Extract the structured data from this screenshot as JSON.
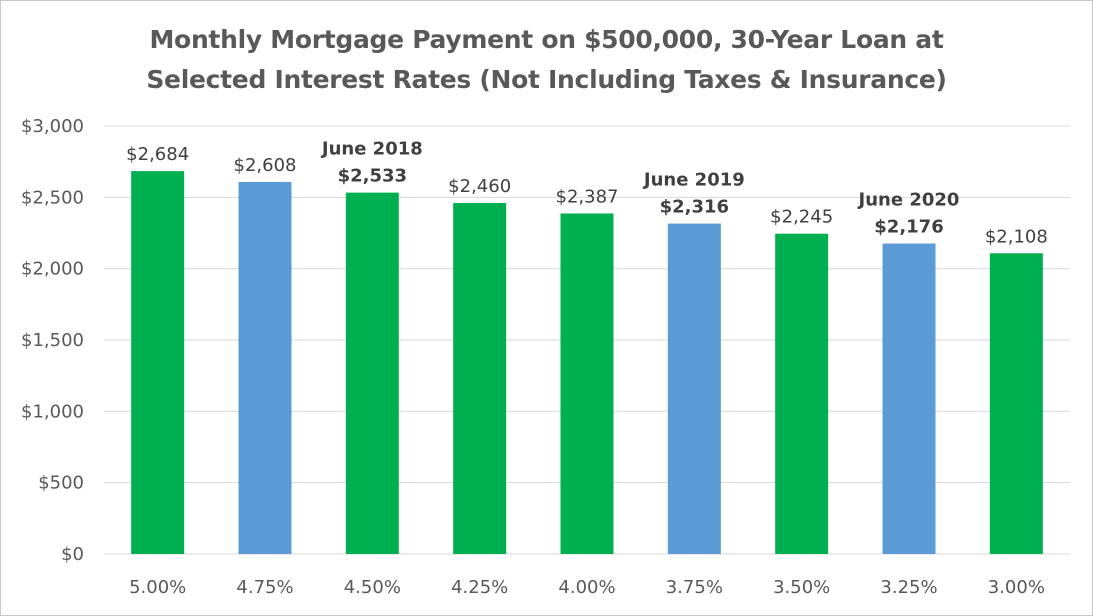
{
  "chart_data": {
    "type": "bar",
    "title_line1": "Monthly Mortgage Payment on $500,000, 30-Year Loan at",
    "title_line2": "Selected Interest Rates (Not Including Taxes & Insurance)",
    "xlabel": "",
    "ylabel": "",
    "ylim": [
      0,
      3000
    ],
    "yticks": [
      0,
      500,
      1000,
      1500,
      2000,
      2500,
      3000
    ],
    "ytick_labels": [
      "$0",
      "$500",
      "$1,000",
      "$1,500",
      "$2,000",
      "$2,500",
      "$3,000"
    ],
    "grid": true,
    "categories": [
      "5.00%",
      "4.75%",
      "4.50%",
      "4.25%",
      "4.00%",
      "3.75%",
      "3.50%",
      "3.25%",
      "3.00%"
    ],
    "values": [
      2684,
      2608,
      2533,
      2460,
      2387,
      2316,
      2245,
      2176,
      2108
    ],
    "value_labels": [
      "$2,684",
      "$2,608",
      "$2,533",
      "$2,460",
      "$2,387",
      "$2,316",
      "$2,245",
      "$2,176",
      "$2,108"
    ],
    "bar_colors": [
      "#00b050",
      "#5b9bd5",
      "#00b050",
      "#00b050",
      "#00b050",
      "#5b9bd5",
      "#00b050",
      "#5b9bd5",
      "#00b050"
    ],
    "bold_labels": [
      false,
      false,
      true,
      false,
      false,
      true,
      false,
      true,
      false
    ],
    "annotations": [
      {
        "category_index": 2,
        "text": "June 2018"
      },
      {
        "category_index": 5,
        "text": "June 2019"
      },
      {
        "category_index": 7,
        "text": "June 2020"
      }
    ]
  },
  "colors": {
    "green": "#00b050",
    "blue": "#5b9bd5",
    "grid": "#d9d9d9",
    "text": "#595959"
  }
}
